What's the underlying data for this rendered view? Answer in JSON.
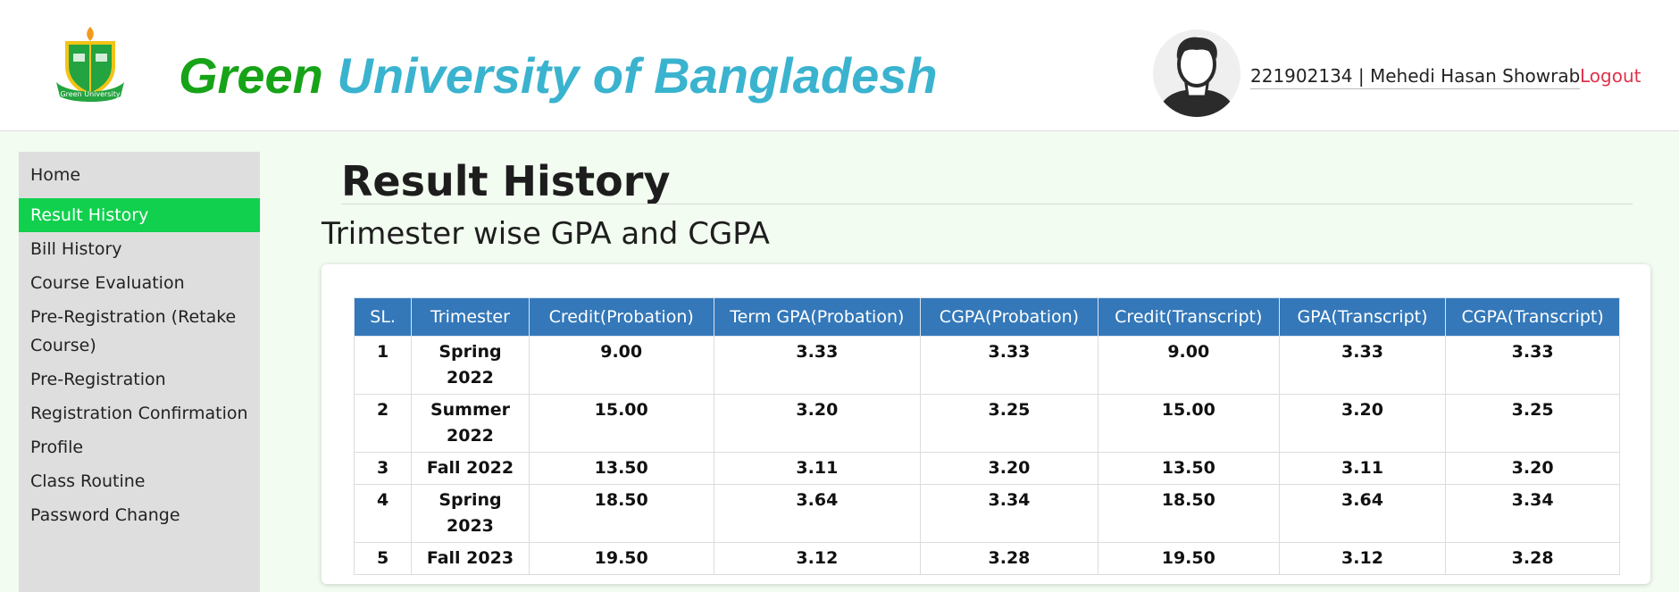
{
  "header": {
    "brand_part1": "Green",
    "brand_part2": "University of Bangladesh",
    "logo_text": "Green University",
    "user_info": "221902134 | Mehedi Hasan Showrab",
    "logout_label": "Logout"
  },
  "sidebar": {
    "items": [
      {
        "label": "Home",
        "active": false
      },
      {
        "label": "Result History",
        "active": true
      },
      {
        "label": "Bill History",
        "active": false
      },
      {
        "label": "Course Evaluation",
        "active": false
      },
      {
        "label": "Pre-Registration (Retake Course)",
        "active": false
      },
      {
        "label": "Pre-Registration",
        "active": false
      },
      {
        "label": "Registration Confirmation",
        "active": false
      },
      {
        "label": "Profile",
        "active": false
      },
      {
        "label": "Class Routine",
        "active": false
      },
      {
        "label": "Password Change",
        "active": false
      }
    ]
  },
  "main": {
    "page_title": "Result History",
    "subtitle": "Trimester wise GPA and CGPA",
    "table": {
      "headers": [
        "SL.",
        "Trimester",
        "Credit(Probation)",
        "Term GPA(Probation)",
        "CGPA(Probation)",
        "Credit(Transcript)",
        "GPA(Transcript)",
        "CGPA(Transcript)"
      ],
      "rows": [
        [
          "1",
          "Spring 2022",
          "9.00",
          "3.33",
          "3.33",
          "9.00",
          "3.33",
          "3.33"
        ],
        [
          "2",
          "Summer 2022",
          "15.00",
          "3.20",
          "3.25",
          "15.00",
          "3.20",
          "3.25"
        ],
        [
          "3",
          "Fall 2022",
          "13.50",
          "3.11",
          "3.20",
          "13.50",
          "3.11",
          "3.20"
        ],
        [
          "4",
          "Spring 2023",
          "18.50",
          "3.64",
          "3.34",
          "18.50",
          "3.64",
          "3.34"
        ],
        [
          "5",
          "Fall 2023",
          "19.50",
          "3.12",
          "3.28",
          "19.50",
          "3.12",
          "3.28"
        ]
      ]
    }
  },
  "colors": {
    "brand_green": "#17a317",
    "brand_blue": "#3ab3cf",
    "active_nav": "#11d04d",
    "table_header": "#3478b9",
    "logout": "#e0334b"
  },
  "icons": {
    "logo": "university-crest-icon",
    "avatar": "user-avatar-icon"
  }
}
